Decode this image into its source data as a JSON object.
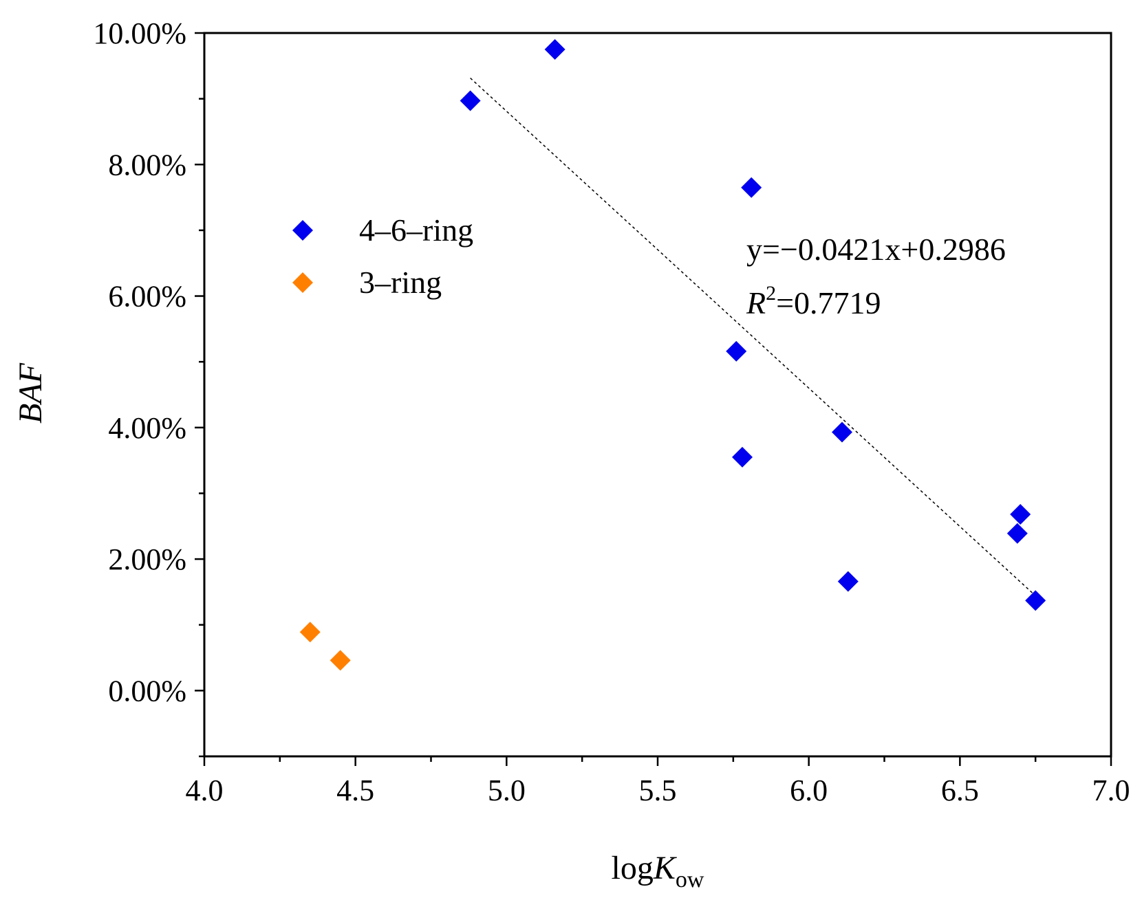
{
  "chart_data": {
    "type": "scatter",
    "title": "",
    "xlabel": {
      "main": "log",
      "italic": "K",
      "sub": "ow"
    },
    "ylabel": "BAF",
    "xlim": [
      4.0,
      7.0
    ],
    "ylim": [
      -0.01,
      0.1
    ],
    "x_ticks": [
      4.0,
      4.5,
      5.0,
      5.5,
      6.0,
      6.5,
      7.0
    ],
    "x_tick_labels": [
      "4.0",
      "4.5",
      "5.0",
      "5.5",
      "6.0",
      "6.5",
      "7.0"
    ],
    "y_ticks": [
      0.0,
      0.02,
      0.04,
      0.06,
      0.08,
      0.1
    ],
    "y_tick_labels": [
      "0.00%",
      "2.00%",
      "4.00%",
      "6.00%",
      "8.00%",
      "10.00%"
    ],
    "x_minor_step": 0.25,
    "y_minor_step": 0.01,
    "grid": false,
    "legend_position": "upper-left",
    "series": [
      {
        "name": "4–6–ring",
        "color": "#0000ee",
        "marker": "diamond",
        "points": [
          {
            "x": 4.88,
            "y": 0.0897
          },
          {
            "x": 5.16,
            "y": 0.0975
          },
          {
            "x": 5.81,
            "y": 0.0765
          },
          {
            "x": 5.76,
            "y": 0.0516
          },
          {
            "x": 5.78,
            "y": 0.0355
          },
          {
            "x": 6.11,
            "y": 0.0393
          },
          {
            "x": 6.13,
            "y": 0.0166
          },
          {
            "x": 6.7,
            "y": 0.0268
          },
          {
            "x": 6.69,
            "y": 0.0239
          },
          {
            "x": 6.75,
            "y": 0.0137
          }
        ]
      },
      {
        "name": "3–ring",
        "color": "#ff8000",
        "marker": "diamond",
        "points": [
          {
            "x": 4.35,
            "y": 0.0089
          },
          {
            "x": 4.45,
            "y": 0.0046
          }
        ]
      }
    ],
    "trendline": {
      "style": "dotted",
      "slope": -0.0421,
      "intercept": 0.2986,
      "x_range": [
        4.88,
        6.75
      ]
    },
    "annotations": {
      "equation": "y=−0.0421x+0.2986",
      "r2_label": "R",
      "r2_sup": "2",
      "r2_value": "=0.7719"
    }
  }
}
